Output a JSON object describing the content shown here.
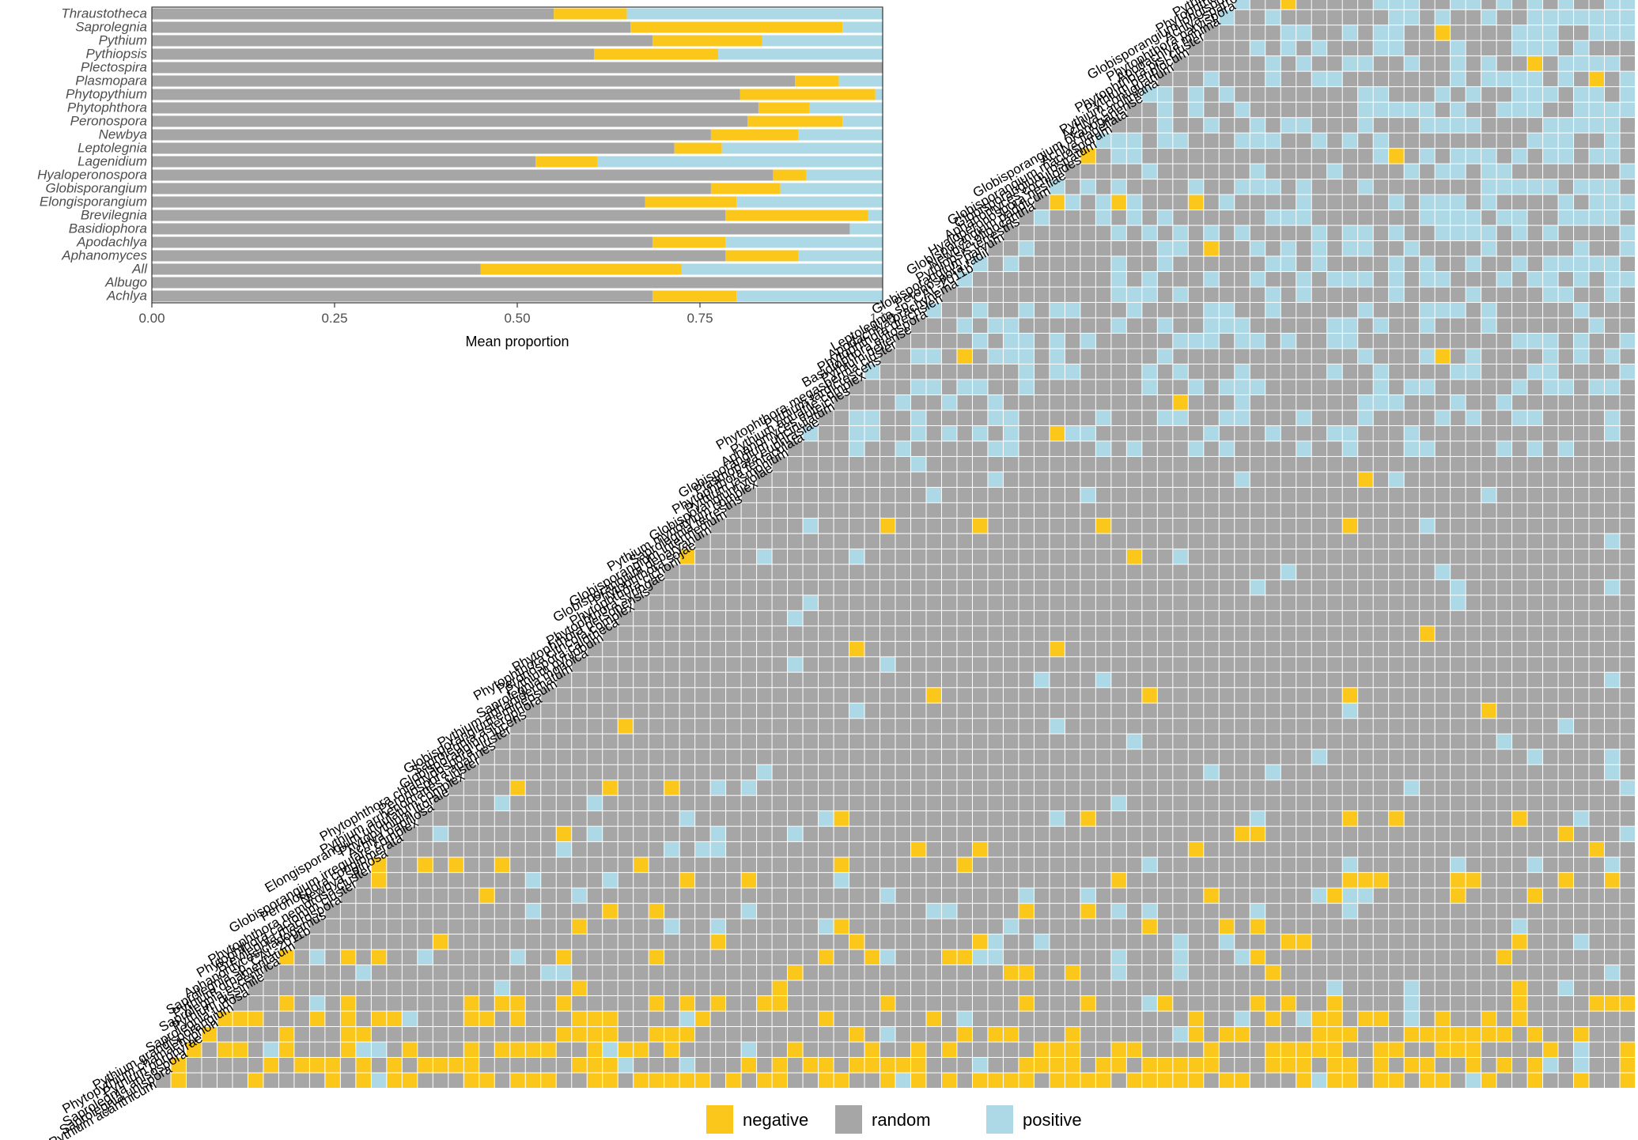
{
  "colors": {
    "negative": "#FBC71A",
    "random": "#A6A6A6",
    "positive": "#ADD8E6",
    "axis": "#333333",
    "panel_border": "#333333"
  },
  "chart_data": [
    {
      "type": "bar",
      "orientation": "horizontal",
      "stacked": true,
      "xlabel": "Mean proportion",
      "xlim": [
        0,
        1
      ],
      "xticks": [
        "0.00",
        "0.25",
        "0.50",
        "0.75",
        "1.00"
      ],
      "grid": false,
      "legend": "bottom",
      "categories": [
        "Thraustotheca",
        "Saprolegnia",
        "Pythium",
        "Pythiopsis",
        "Plectospira",
        "Plasmopara",
        "Phytopythium",
        "Phytophthora",
        "Peronospora",
        "Newbya",
        "Leptolegnia",
        "Lagenidium",
        "Hyaloperonospora",
        "Globisporangium",
        "Elongisporangium",
        "Brevilegnia",
        "Basidiophora",
        "Apodachlya",
        "Aphanomyces",
        "All",
        "Albugo",
        "Achlya"
      ],
      "series": [
        {
          "name": "random",
          "values": [
            0.55,
            0.655,
            0.685,
            0.605,
            1.0,
            0.88,
            0.805,
            0.83,
            0.815,
            0.765,
            0.715,
            0.525,
            0.85,
            0.765,
            0.675,
            0.785,
            0.955,
            0.685,
            0.785,
            0.45,
            1.0,
            0.685
          ]
        },
        {
          "name": "negative",
          "values": [
            0.1,
            0.29,
            0.15,
            0.17,
            0.0,
            0.06,
            0.185,
            0.07,
            0.13,
            0.12,
            0.065,
            0.085,
            0.045,
            0.095,
            0.125,
            0.195,
            0.0,
            0.1,
            0.1,
            0.275,
            0.0,
            0.115
          ]
        },
        {
          "name": "positive",
          "values": [
            0.35,
            0.055,
            0.165,
            0.225,
            0.0,
            0.06,
            0.01,
            0.1,
            0.055,
            0.115,
            0.22,
            0.39,
            0.105,
            0.14,
            0.2,
            0.02,
            0.045,
            0.215,
            0.115,
            0.275,
            0.0,
            0.2
          ]
        }
      ]
    },
    {
      "type": "heatmap",
      "triangular": "lower",
      "species": [
        "Pythium acanthicum",
        "Saprolegnia unispora",
        "Saprolegnia anisospora",
        "Pythium porphyrae",
        "Phytopythium chamaehyphon",
        "Pythium grandisporangium",
        "Saprolegnia turfosa",
        "Pythium dissimile",
        "Saprolegnia eccentrica",
        "Pythium ornamentatum",
        "Saprolegnia sp. CAL-2011b",
        "Aphanomyces cladogamus",
        "Brevilegnia macrospora",
        "Phytophthora cactorum cluster",
        "Phytophthora nemorosa cluster",
        "Newbya spinosa",
        "Peronospora conglomerata",
        "Globisporangium irregulare complex",
        "Achlya papillosa",
        "Phytopythium litorale",
        "Elongisporangium undulatum complex",
        "Pythium arrhenomanes cluster",
        "Peronospora aparines",
        "Phytophthora chlamydospora cluster",
        "Globisporangium lucens",
        "Saprolegnia asterophora",
        "Globisporangium emineosum",
        "Pythium aphanidermatum",
        "Saprolegnia monoica",
        "Pythium pyrilobum",
        "Peronospora calotheca",
        "Phytophthora citricola complex",
        "Phytophthora personensis",
        "Phytophthora syringae",
        "Phytophthora cichorii",
        "Phytophthora sojae",
        "Globisporangium debaryanum",
        "Globisporangium intermedium",
        "Saprolegnia terrestris",
        "Pythium myriotylum complex",
        "Globisporangium violae",
        "Pythium jasmonium",
        "Phytophthora tentaculata",
        "Plasmopara euphrasiae",
        "Globisporangium uncinulatum",
        "Aphanomyces euteiches",
        "Pythium aquatile complex",
        "Pythium tardicrescens",
        "Phytophthora megasperma cluster",
        "Pythium deliense",
        "Basidiophora entospora",
        "Phytophthora drechsleri",
        "Apodachlya brachynema",
        "Leptolegnia sp. CAL-2011b",
        "Peronospora radii",
        "Globisporangium parvum",
        "Pythiopsis terrestris",
        "Newbya oligocantha",
        "Globisporangium paddicum",
        "Hyaloperonospora nesliae",
        "Aphanomyces cochlioides",
        "Globisporangium rostratum",
        "Globisporangium macrosporum",
        "Achlya flagellata",
        "Globisporangium okanoganense",
        "Achlya caroliniana",
        "Pythium contiguanum",
        "Pythium periplocum",
        "Phytophthora pisi cluster",
        "Apodachlya minima",
        "Phytophthora parvispora",
        "Achlya sparrowii",
        "Globisporangium longisporangium",
        "Phytophthora transitoria",
        "Pythium sp. CAL-2011e",
        "Pythium folliculosum",
        "Globisporangium minor",
        "Phytophthora sansomeana",
        "Saprolegnia subterranea",
        "Elongisporangium anandrum",
        "Leptolegnia caudata",
        "Pythium dissotocum complex",
        "Phytophthora europaea cluster",
        "Pythium salpingophorum complex",
        "Pythium volutum",
        "Pythium inflatum",
        "Lagenidium giganteum",
        "Pythium pectinolyticum",
        "Globisporangium rostratifingens",
        "Pythium vanterpoolii",
        "Globisporangium perplexum",
        "Pythium sulcatum",
        "Pythium longandrum",
        "Globisporangium megalacanthum complex",
        "Thraustotheca terrestris",
        "Lagenidium caudatum"
      ],
      "categories": [
        "negative",
        "random",
        "positive"
      ],
      "legend": "bottom"
    }
  ],
  "legend": {
    "items": [
      {
        "key": "negative",
        "label": "negative"
      },
      {
        "key": "random",
        "label": "random"
      },
      {
        "key": "positive",
        "label": "positive"
      }
    ]
  }
}
